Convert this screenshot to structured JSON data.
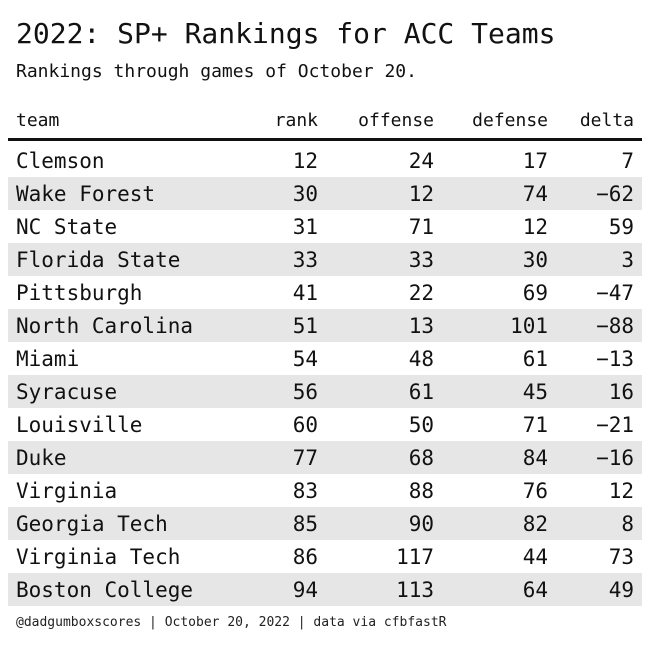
{
  "header": {
    "title": "2022: SP+ Rankings for ACC Teams",
    "subtitle": "Rankings through games of October 20."
  },
  "footer": {
    "text": "@dadgumboxscores | October 20, 2022 | data via cfbfastR"
  },
  "chart_data": {
    "type": "table",
    "columns": [
      "team",
      "rank",
      "offense",
      "defense",
      "delta"
    ],
    "rows": [
      {
        "team": "Clemson",
        "rank": 12,
        "offense": 24,
        "defense": 17,
        "delta": 7
      },
      {
        "team": "Wake Forest",
        "rank": 30,
        "offense": 12,
        "defense": 74,
        "delta": -62
      },
      {
        "team": "NC State",
        "rank": 31,
        "offense": 71,
        "defense": 12,
        "delta": 59
      },
      {
        "team": "Florida State",
        "rank": 33,
        "offense": 33,
        "defense": 30,
        "delta": 3
      },
      {
        "team": "Pittsburgh",
        "rank": 41,
        "offense": 22,
        "defense": 69,
        "delta": -47
      },
      {
        "team": "North Carolina",
        "rank": 51,
        "offense": 13,
        "defense": 101,
        "delta": -88
      },
      {
        "team": "Miami",
        "rank": 54,
        "offense": 48,
        "defense": 61,
        "delta": -13
      },
      {
        "team": "Syracuse",
        "rank": 56,
        "offense": 61,
        "defense": 45,
        "delta": 16
      },
      {
        "team": "Louisville",
        "rank": 60,
        "offense": 50,
        "defense": 71,
        "delta": -21
      },
      {
        "team": "Duke",
        "rank": 77,
        "offense": 68,
        "defense": 84,
        "delta": -16
      },
      {
        "team": "Virginia",
        "rank": 83,
        "offense": 88,
        "defense": 76,
        "delta": 12
      },
      {
        "team": "Georgia Tech",
        "rank": 85,
        "offense": 90,
        "defense": 82,
        "delta": 8
      },
      {
        "team": "Virginia Tech",
        "rank": 86,
        "offense": 117,
        "defense": 44,
        "delta": 73
      },
      {
        "team": "Boston College",
        "rank": 94,
        "offense": 113,
        "defense": 64,
        "delta": 49
      }
    ]
  }
}
